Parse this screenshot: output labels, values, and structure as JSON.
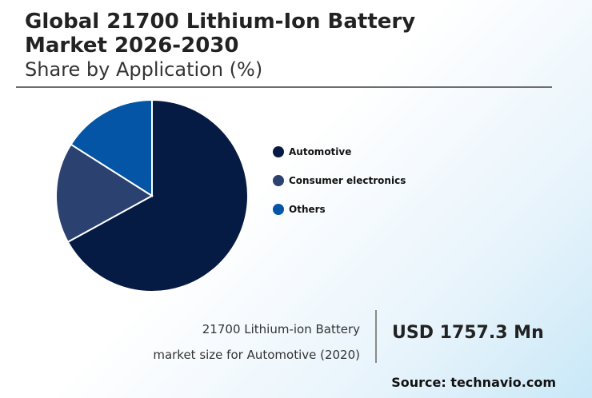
{
  "header": {
    "title_line1": "Global 21700 Lithium-Ion Battery",
    "title_line2": "Market 2026-2030",
    "subtitle": "Share by Application (%)"
  },
  "chart_data": {
    "type": "pie",
    "title": "Global 21700 Lithium-Ion Battery Market 2026-2030",
    "subtitle": "Share by Application (%)",
    "legend_position": "right",
    "slices": [
      {
        "label": "Automotive",
        "value": 67,
        "color": "#061b44"
      },
      {
        "label": "Consumer electronics",
        "value": 17,
        "color": "#2b4170"
      },
      {
        "label": "Others",
        "value": 16,
        "color": "#0455a6"
      }
    ]
  },
  "metric": {
    "label_line1": "21700 Lithium-ion Battery",
    "label_line2": "market size for Automotive (2020)",
    "value": "USD 1757.3 Mn"
  },
  "source": "Source: technavio.com"
}
